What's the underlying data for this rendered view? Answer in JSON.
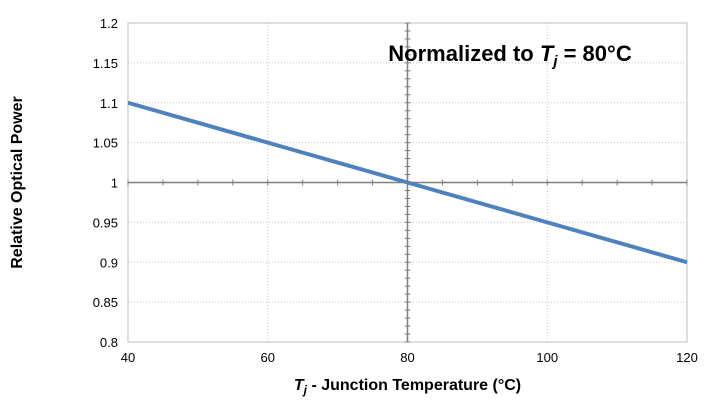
{
  "chart_data": {
    "type": "line",
    "xlabel": {
      "symbol": "T",
      "subscript": "j",
      "rest": " - Junction Temperature (°C)"
    },
    "ylabel": "Relative Optical Power",
    "annotation": {
      "prefix": "Normalized to ",
      "symbol": "T",
      "subscript": "j",
      "suffix": " = 80°C"
    },
    "xlim": [
      40,
      120
    ],
    "ylim": [
      0.8,
      1.2
    ],
    "x_ticks": [
      40,
      60,
      80,
      100,
      120
    ],
    "x_tick_labels": [
      "40",
      "60",
      "80",
      "100",
      "120"
    ],
    "y_ticks": [
      0.8,
      0.85,
      0.9,
      0.95,
      1.0,
      1.05,
      1.1,
      1.15,
      1.2
    ],
    "y_tick_labels": [
      "0.8",
      "0.85",
      "0.9",
      "0.95",
      "1",
      "1.05",
      "1.1",
      "1.15",
      "1.2"
    ],
    "grid": true,
    "series": [
      {
        "color": "#4f81bd",
        "x": [
          40,
          60,
          80,
          100,
          120
        ],
        "y": [
          1.1,
          1.05,
          1.0,
          0.95,
          0.9
        ]
      }
    ],
    "crosshair": {
      "x": 80,
      "y": 1.0,
      "color": "#7f7f7f"
    }
  }
}
